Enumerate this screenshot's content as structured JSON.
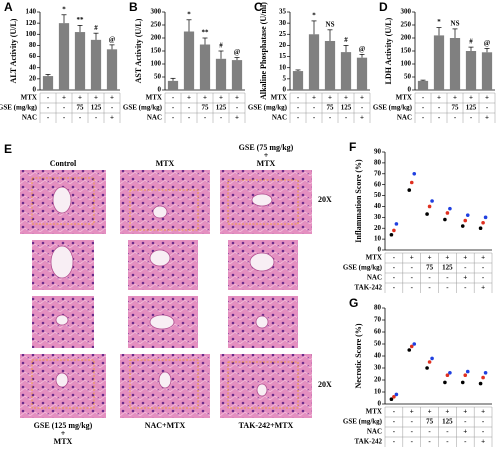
{
  "chart_data": [
    {
      "type": "bar",
      "panel": "A",
      "ylabel": "ALT Activity (U/L)",
      "ylim": [
        0,
        140
      ],
      "yticks": [
        0,
        20,
        40,
        60,
        80,
        100,
        120,
        140
      ],
      "color": "#808080",
      "values": [
        25,
        120,
        104,
        90,
        73
      ],
      "errors": [
        3,
        15,
        12,
        12,
        8
      ],
      "annotations": [
        null,
        "*",
        "**",
        "#",
        "@"
      ],
      "treatments": [
        {
          "label": "MTX",
          "marks": [
            "-",
            "+",
            "+",
            "+",
            "+"
          ]
        },
        {
          "label": "GSE (mg/kg)",
          "marks": [
            "-",
            "-",
            "75",
            "125",
            "-"
          ]
        },
        {
          "label": "NAC",
          "marks": [
            "-",
            "-",
            "-",
            "-",
            "+"
          ]
        }
      ]
    },
    {
      "type": "bar",
      "panel": "B",
      "ylabel": "AST Activity (U/L)",
      "ylim": [
        0,
        300
      ],
      "yticks": [
        0,
        50,
        100,
        150,
        200,
        250,
        300
      ],
      "color": "#808080",
      "values": [
        35,
        225,
        175,
        120,
        115
      ],
      "errors": [
        10,
        45,
        25,
        30,
        10
      ],
      "annotations": [
        null,
        "*",
        "**",
        "#",
        "@"
      ],
      "treatments": [
        {
          "label": "MTX",
          "marks": [
            "-",
            "+",
            "+",
            "+",
            "+"
          ]
        },
        {
          "label": "GSE (mg/kg)",
          "marks": [
            "-",
            "-",
            "75",
            "125",
            "-"
          ]
        },
        {
          "label": "NAC",
          "marks": [
            "-",
            "-",
            "-",
            "-",
            "+"
          ]
        }
      ]
    },
    {
      "type": "bar",
      "panel": "C",
      "ylabel": "Alkaline Phosphatase (U/ml)",
      "ylim": [
        0,
        35
      ],
      "yticks": [
        0,
        5,
        10,
        15,
        20,
        25,
        30,
        35
      ],
      "color": "#808080",
      "values": [
        8.5,
        25,
        22,
        17,
        14.5
      ],
      "errors": [
        0.5,
        6,
        5,
        3,
        1.5
      ],
      "annotations": [
        null,
        "*",
        "NS",
        "#",
        "@"
      ],
      "treatments": [
        {
          "label": "MTX",
          "marks": [
            "-",
            "+",
            "+",
            "+",
            "+"
          ]
        },
        {
          "label": "GSE (mg/kg)",
          "marks": [
            "-",
            "-",
            "75",
            "125",
            "-"
          ]
        },
        {
          "label": "NAC",
          "marks": [
            "-",
            "-",
            "-",
            "-",
            "+"
          ]
        }
      ]
    },
    {
      "type": "bar",
      "panel": "D",
      "ylabel": "LDH Activity (U/L)",
      "ylim": [
        0,
        300
      ],
      "yticks": [
        0,
        50,
        100,
        150,
        200,
        250,
        300
      ],
      "color": "#808080",
      "values": [
        35,
        210,
        200,
        150,
        145
      ],
      "errors": [
        3,
        30,
        35,
        15,
        15
      ],
      "annotations": [
        null,
        "*",
        "NS",
        "#",
        "@"
      ],
      "treatments": [
        {
          "label": "MTX",
          "marks": [
            "-",
            "+",
            "+",
            "+",
            "+"
          ]
        },
        {
          "label": "GSE (mg/kg)",
          "marks": [
            "-",
            "-",
            "75",
            "125",
            "-"
          ]
        },
        {
          "label": "NAC",
          "marks": [
            "-",
            "-",
            "-",
            "-",
            "+"
          ]
        }
      ]
    },
    {
      "type": "scatter",
      "panel": "F",
      "ylabel": "Inflammation Score (%)",
      "ylim": [
        0,
        90
      ],
      "yticks": [
        0,
        10,
        20,
        30,
        40,
        50,
        60,
        70,
        80,
        90
      ],
      "series": [
        {
          "color": "#000000",
          "values": [
            14,
            55,
            33,
            28,
            22,
            20
          ]
        },
        {
          "color": "#e03020",
          "values": [
            18,
            62,
            40,
            34,
            27,
            25
          ]
        },
        {
          "color": "#2040e0",
          "values": [
            24,
            70,
            45,
            38,
            32,
            30
          ]
        }
      ],
      "treatments": [
        {
          "label": "MTX",
          "marks": [
            "-",
            "+",
            "+",
            "+",
            "+",
            "+"
          ]
        },
        {
          "label": "GSE (mg/kg)",
          "marks": [
            "-",
            "-",
            "75",
            "125",
            "-",
            "-"
          ]
        },
        {
          "label": "NAC",
          "marks": [
            "-",
            "-",
            "-",
            "-",
            "+",
            "-"
          ]
        },
        {
          "label": "TAK-242",
          "marks": [
            "-",
            "-",
            "-",
            "-",
            "-",
            "+"
          ]
        }
      ]
    },
    {
      "type": "scatter",
      "panel": "G",
      "ylabel": "Necrotic Score (%)",
      "ylim": [
        0,
        80
      ],
      "yticks": [
        0,
        10,
        20,
        30,
        40,
        50,
        60,
        70,
        80
      ],
      "series": [
        {
          "color": "#000000",
          "values": [
            4,
            45,
            30,
            18,
            18,
            17
          ]
        },
        {
          "color": "#e03020",
          "values": [
            6,
            48,
            35,
            24,
            24,
            22
          ]
        },
        {
          "color": "#2040e0",
          "values": [
            8,
            50,
            38,
            26,
            27,
            26
          ]
        }
      ],
      "treatments": [
        {
          "label": "MTX",
          "marks": [
            "-",
            "+",
            "+",
            "+",
            "+",
            "+"
          ]
        },
        {
          "label": "GSE (mg/kg)",
          "marks": [
            "-",
            "-",
            "75",
            "125",
            "-",
            "-"
          ]
        },
        {
          "label": "NAC",
          "marks": [
            "-",
            "-",
            "-",
            "-",
            "+",
            "-"
          ]
        },
        {
          "label": "TAK-242",
          "marks": [
            "-",
            "-",
            "-",
            "-",
            "-",
            "+"
          ]
        }
      ]
    }
  ],
  "panel_e": {
    "panel": "E",
    "top_labels": [
      [
        "Control"
      ],
      [
        "MTX"
      ],
      [
        "GSE (75 mg/kg)",
        "+",
        "MTX"
      ]
    ],
    "bottom_labels": [
      [
        "GSE (125 mg/kg)",
        "+",
        "MTX"
      ],
      [
        "NAC+MTX"
      ],
      [
        "TAK-242+MTX"
      ]
    ],
    "magnifications": [
      "20X",
      "20X"
    ]
  }
}
